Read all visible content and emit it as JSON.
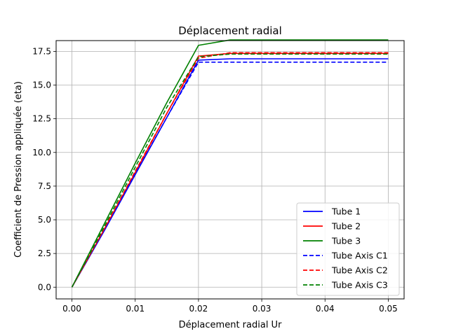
{
  "chart_data": {
    "type": "line",
    "title": "Déplacement radial",
    "xlabel": "Déplacement radial Ur",
    "ylabel": "Coefficient de Pression appliquée (eta)",
    "xlim": [
      -0.0025,
      0.0525
    ],
    "ylim": [
      -0.87,
      18.3
    ],
    "xticks": [
      0.0,
      0.01,
      0.02,
      0.03,
      0.04,
      0.05
    ],
    "xtick_labels": [
      "0.00",
      "0.01",
      "0.02",
      "0.03",
      "0.04",
      "0.05"
    ],
    "yticks": [
      0.0,
      2.5,
      5.0,
      7.5,
      10.0,
      12.5,
      15.0,
      17.5
    ],
    "ytick_labels": [
      "0.0",
      "2.5",
      "5.0",
      "7.5",
      "10.0",
      "12.5",
      "15.0",
      "17.5"
    ],
    "grid": true,
    "legend_position": "lower-right",
    "series": [
      {
        "name": "Tube 1",
        "color": "#0000ff",
        "dash": "solid",
        "x": [
          0,
          0.005,
          0.01,
          0.015,
          0.02,
          0.025,
          0.03,
          0.035,
          0.04,
          0.045,
          0.05
        ],
        "y": [
          0,
          4.1,
          8.35,
          12.6,
          16.85,
          16.95,
          16.95,
          16.95,
          16.95,
          16.95,
          16.95
        ]
      },
      {
        "name": "Tube 2",
        "color": "#ff0000",
        "dash": "solid",
        "x": [
          0,
          0.005,
          0.01,
          0.015,
          0.02,
          0.025,
          0.03,
          0.035,
          0.04,
          0.045,
          0.05
        ],
        "y": [
          0,
          4.2,
          8.5,
          12.9,
          17.15,
          17.35,
          17.35,
          17.35,
          17.35,
          17.35,
          17.35
        ]
      },
      {
        "name": "Tube 3",
        "color": "#008000",
        "dash": "solid",
        "x": [
          0,
          0.005,
          0.01,
          0.015,
          0.02,
          0.025,
          0.03,
          0.035,
          0.04,
          0.045,
          0.05
        ],
        "y": [
          0,
          4.6,
          9.2,
          13.7,
          17.95,
          18.35,
          18.35,
          18.35,
          18.35,
          18.35,
          18.35
        ]
      },
      {
        "name": "Tube Axis C1",
        "color": "#0000ff",
        "dash": "dashed",
        "x": [
          0,
          0.005,
          0.01,
          0.015,
          0.02,
          0.025,
          0.03,
          0.035,
          0.04,
          0.045,
          0.05
        ],
        "y": [
          0,
          4.15,
          8.4,
          12.6,
          16.7,
          16.7,
          16.7,
          16.7,
          16.7,
          16.7,
          16.7
        ]
      },
      {
        "name": "Tube Axis C2",
        "color": "#ff0000",
        "dash": "dashed",
        "x": [
          0,
          0.005,
          0.01,
          0.015,
          0.02,
          0.025,
          0.03,
          0.035,
          0.04,
          0.045,
          0.05
        ],
        "y": [
          0,
          4.25,
          8.6,
          12.9,
          17.0,
          17.4,
          17.4,
          17.4,
          17.4,
          17.4,
          17.4
        ]
      },
      {
        "name": "Tube Axis C3",
        "color": "#008000",
        "dash": "dashed",
        "x": [
          0,
          0.005,
          0.01,
          0.015,
          0.02,
          0.025,
          0.03,
          0.035,
          0.04,
          0.045,
          0.05
        ],
        "y": [
          0,
          4.4,
          8.9,
          13.35,
          17.1,
          17.3,
          17.3,
          17.3,
          17.3,
          17.3,
          17.3
        ]
      }
    ]
  }
}
